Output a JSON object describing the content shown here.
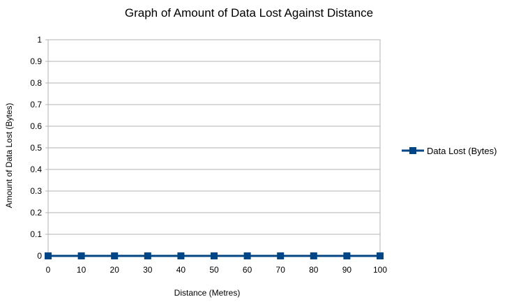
{
  "chart_data": {
    "type": "line",
    "title": "Graph of Amount of Data Lost Against Distance",
    "xlabel": "Distance (Metres)",
    "ylabel": "Amount of Data Lost (Bytes)",
    "x": [
      0,
      10,
      20,
      30,
      40,
      50,
      60,
      70,
      80,
      90,
      100
    ],
    "series": [
      {
        "name": "Data Lost (Bytes)",
        "values": [
          0,
          0,
          0,
          0,
          0,
          0,
          0,
          0,
          0,
          0,
          0
        ],
        "color": "#004586",
        "marker": "square"
      }
    ],
    "xlim": [
      0,
      100
    ],
    "ylim": [
      0,
      1
    ],
    "xticks": [
      "0",
      "10",
      "20",
      "30",
      "40",
      "50",
      "60",
      "70",
      "80",
      "90",
      "100"
    ],
    "yticks": [
      "0",
      "0.1",
      "0.2",
      "0.3",
      "0.4",
      "0.5",
      "0.6",
      "0.7",
      "0.8",
      "0.9",
      "1"
    ],
    "grid": true,
    "legend_position": "right"
  }
}
